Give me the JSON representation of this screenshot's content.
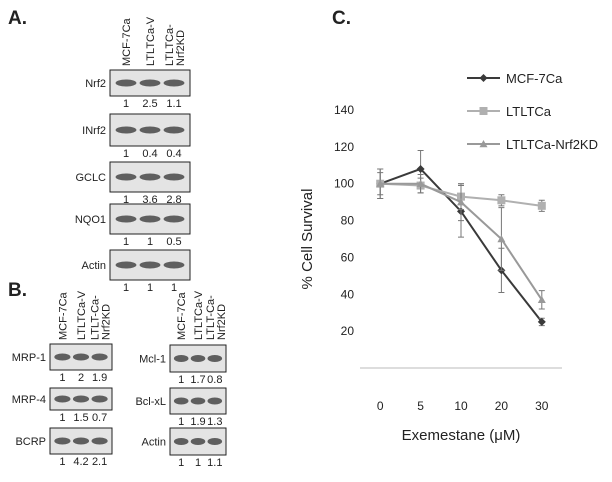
{
  "panel_a": {
    "label": "A.",
    "lanes": [
      [
        "MCF-7Ca"
      ],
      [
        "LTLTCa-V"
      ],
      [
        "LTLTCa-",
        "Nrf2KD"
      ]
    ],
    "blots": [
      {
        "name": "Nrf2",
        "values": [
          1,
          2.5,
          1.1
        ]
      },
      {
        "name": "INrf2",
        "values": [
          1,
          0.4,
          0.4
        ]
      },
      {
        "name": "GCLC",
        "values": [
          1,
          3.6,
          2.8
        ]
      },
      {
        "name": "NQO1",
        "values": [
          1,
          1,
          0.5
        ]
      },
      {
        "name": "Actin",
        "values": [
          1,
          1,
          1
        ]
      }
    ]
  },
  "panel_b": {
    "label": "B.",
    "left": {
      "lanes": [
        [
          "MCF-7Ca"
        ],
        [
          "LTLTCa-V"
        ],
        [
          "LTLT-Ca-",
          "Nrf2KD"
        ]
      ],
      "blots": [
        {
          "name": "MRP-1",
          "values": [
            1,
            2,
            1.9
          ]
        },
        {
          "name": "MRP-4",
          "values": [
            1,
            1.5,
            0.7
          ]
        },
        {
          "name": "BCRP",
          "values": [
            1,
            4.2,
            2.1
          ]
        }
      ]
    },
    "right": {
      "lanes": [
        [
          "MCF-7Ca"
        ],
        [
          "LTLTCa-V"
        ],
        [
          "LTLT-Ca-",
          "Nrf2KD"
        ]
      ],
      "blots": [
        {
          "name": "Mcl-1",
          "values": [
            1,
            1.7,
            0.8
          ]
        },
        {
          "name": "Bcl-xL",
          "values": [
            1,
            1.9,
            1.3
          ]
        },
        {
          "name": "Actin",
          "values": [
            1,
            1,
            1.1
          ]
        }
      ]
    }
  },
  "chart_data": {
    "type": "line",
    "panel_label": "C.",
    "x_label": "Exemestane (μM)",
    "y_label": "% Cell Survival",
    "categories": [
      "0",
      "5",
      "10",
      "20",
      "30"
    ],
    "ylim": [
      0,
      140
    ],
    "yticks": [
      20,
      40,
      60,
      80,
      100,
      120,
      140
    ],
    "grid": false,
    "legend": "top-right",
    "series": [
      {
        "name": "MCF-7Ca",
        "color": "#3a3a3a",
        "marker": "diamond",
        "values": [
          100,
          108,
          85,
          53,
          25
        ],
        "errors": [
          8,
          10,
          14,
          12,
          2
        ]
      },
      {
        "name": "LTLTCa",
        "color": "#b0b0b0",
        "marker": "square",
        "values": [
          100,
          99,
          93,
          91,
          88
        ],
        "errors": [
          6,
          4,
          7,
          3,
          3
        ]
      },
      {
        "name": "LTLTCa-Nrf2KD",
        "color": "#999999",
        "marker": "triangle",
        "values": [
          100,
          100,
          90,
          70,
          37
        ],
        "errors": [
          8,
          5,
          10,
          17,
          5
        ]
      }
    ]
  }
}
